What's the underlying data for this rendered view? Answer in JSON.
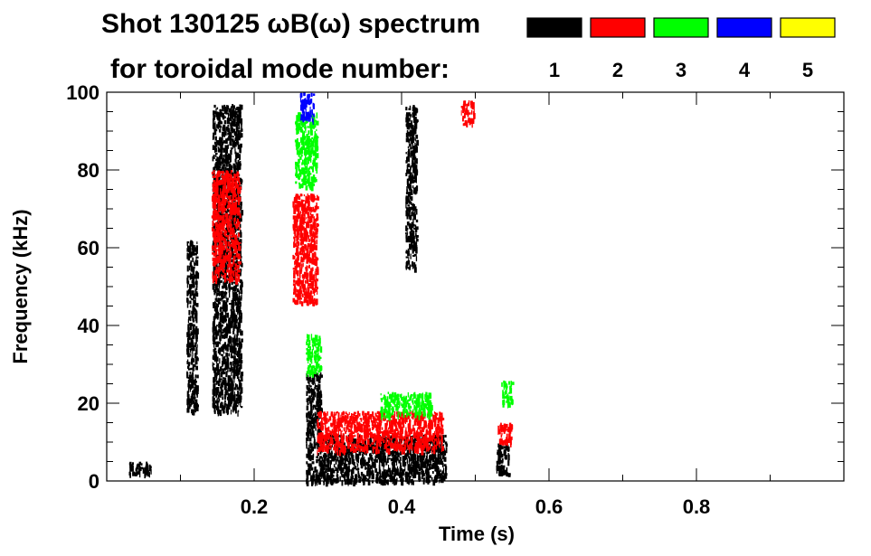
{
  "chart_data": {
    "type": "heatmap",
    "title": "Shot 130125 ωB(ω) spectrum",
    "subtitle": "for toroidal mode number:",
    "xlabel": "Time (s)",
    "ylabel": "Frequency (kHz)",
    "xlim": [
      0.0,
      1.0
    ],
    "ylim": [
      0,
      100
    ],
    "x_ticks": [
      {
        "value": 0.2,
        "label": "0.2"
      },
      {
        "value": 0.4,
        "label": "0.4"
      },
      {
        "value": 0.6,
        "label": "0.6"
      },
      {
        "value": 0.8,
        "label": "0.8"
      }
    ],
    "y_ticks": [
      {
        "value": 0,
        "label": "0"
      },
      {
        "value": 20,
        "label": "20"
      },
      {
        "value": 40,
        "label": "40"
      },
      {
        "value": 60,
        "label": "60"
      },
      {
        "value": 80,
        "label": "80"
      },
      {
        "value": 100,
        "label": "100"
      }
    ],
    "legend": {
      "placement": "top-right",
      "entries": [
        {
          "label": "1",
          "color": "#000000"
        },
        {
          "label": "2",
          "color": "#ff0000"
        },
        {
          "label": "3",
          "color": "#00ff00"
        },
        {
          "label": "4",
          "color": "#0000ff"
        },
        {
          "label": "5",
          "color": "#ffff00"
        }
      ]
    },
    "series": [
      {
        "mode": "1",
        "color": "#000000",
        "features": [
          {
            "t": [
              0.108,
              0.122
            ],
            "f": [
              18,
              62
            ]
          },
          {
            "t": [
              0.143,
              0.182
            ],
            "f": [
              18,
              97
            ]
          },
          {
            "t": [
              0.27,
              0.29
            ],
            "f": [
              0,
              28
            ]
          },
          {
            "t": [
              0.29,
              0.46
            ],
            "f": [
              0,
              12
            ]
          },
          {
            "t": [
              0.405,
              0.42
            ],
            "f": [
              55,
              97
            ]
          },
          {
            "t": [
              0.528,
              0.545
            ],
            "f": [
              2,
              10
            ]
          },
          {
            "t": [
              0.03,
              0.06
            ],
            "f": [
              2,
              5
            ]
          }
        ]
      },
      {
        "mode": "2",
        "color": "#ff0000",
        "features": [
          {
            "t": [
              0.142,
              0.18
            ],
            "f": [
              52,
              80
            ]
          },
          {
            "t": [
              0.252,
              0.285
            ],
            "f": [
              46,
              74
            ]
          },
          {
            "t": [
              0.285,
              0.455
            ],
            "f": [
              8,
              18
            ]
          },
          {
            "t": [
              0.53,
              0.548
            ],
            "f": [
              10,
              15
            ]
          },
          {
            "t": [
              0.48,
              0.498
            ],
            "f": [
              92,
              98
            ]
          }
        ]
      },
      {
        "mode": "3",
        "color": "#00ff00",
        "features": [
          {
            "t": [
              0.255,
              0.285
            ],
            "f": [
              76,
              95
            ]
          },
          {
            "t": [
              0.27,
              0.29
            ],
            "f": [
              28,
              38
            ]
          },
          {
            "t": [
              0.37,
              0.44
            ],
            "f": [
              17,
              23
            ]
          },
          {
            "t": [
              0.535,
              0.55
            ],
            "f": [
              20,
              26
            ]
          }
        ]
      },
      {
        "mode": "4",
        "color": "#0000ff",
        "features": [
          {
            "t": [
              0.262,
              0.28
            ],
            "f": [
              93,
              100
            ]
          }
        ]
      },
      {
        "mode": "5",
        "color": "#ffff00",
        "features": []
      }
    ]
  }
}
